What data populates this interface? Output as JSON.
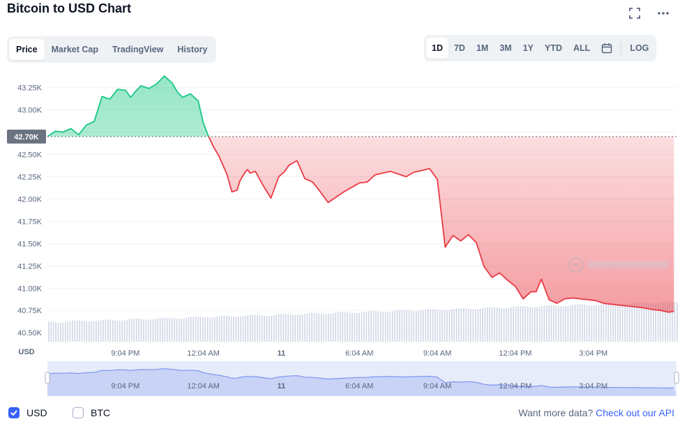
{
  "title": "Bitcoin to USD Chart",
  "header_icons": [
    "fullscreen-icon",
    "more-icon"
  ],
  "view_tabs": [
    {
      "label": "Price",
      "active": true
    },
    {
      "label": "Market Cap",
      "active": false
    },
    {
      "label": "TradingView",
      "active": false
    },
    {
      "label": "History",
      "active": false
    }
  ],
  "range_tabs": [
    {
      "label": "1D",
      "active": true
    },
    {
      "label": "7D",
      "active": false
    },
    {
      "label": "1M",
      "active": false
    },
    {
      "label": "3M",
      "active": false
    },
    {
      "label": "1Y",
      "active": false
    },
    {
      "label": "YTD",
      "active": false
    },
    {
      "label": "ALL",
      "active": false
    }
  ],
  "log_label": "LOG",
  "calendar_icon": "calendar-icon",
  "legend": {
    "usd": "USD",
    "btc": "BTC",
    "usd_checked": true,
    "btc_checked": false
  },
  "more_data": {
    "text": "Want more data?",
    "link": "Check out our API"
  },
  "colors": {
    "up": "#16c784",
    "down": "#ea3943",
    "accent": "#3861fb",
    "volume": "#cfd6e4"
  },
  "chart_data": {
    "type": "line",
    "ylabel": "USD",
    "ylim": [
      40400,
      43450
    ],
    "y_ticks": [
      "43.25K",
      "43.00K",
      "42.75K",
      "42.50K",
      "42.25K",
      "42.00K",
      "41.75K",
      "41.50K",
      "41.25K",
      "41.00K",
      "40.75K",
      "40.50K"
    ],
    "y_tick_values": [
      43250,
      43000,
      42750,
      42500,
      42250,
      42000,
      41750,
      41500,
      41250,
      41000,
      40750,
      40500
    ],
    "reference_value": 42700,
    "reference_label": "42.70K",
    "x_ticks": [
      "9:04 PM",
      "12:04 AM",
      "11",
      "6:04 AM",
      "9:04 AM",
      "12:04 PM",
      "3:04 PM"
    ],
    "x_tick_hours": [
      3,
      6,
      9,
      12,
      15,
      18,
      21
    ],
    "x_range_hours": [
      0,
      24.2
    ],
    "series": [
      {
        "x": [
          0,
          0.3,
          0.6,
          0.9,
          1.2,
          1.5,
          1.8,
          2.1,
          2.4,
          2.7,
          3.0,
          3.2,
          3.4,
          3.6,
          3.9,
          4.2,
          4.5,
          4.8,
          5.0,
          5.2,
          5.5,
          5.8,
          6.0,
          6.2,
          6.4,
          6.6,
          6.9,
          7.1,
          7.3,
          7.4,
          7.6,
          7.7,
          7.8,
          8.0,
          8.3,
          8.6,
          8.9,
          9.1,
          9.3,
          9.6,
          9.9,
          10.2,
          10.5,
          10.8,
          11.1,
          11.4,
          11.7,
          12.0,
          12.3,
          12.6,
          12.9,
          13.2,
          13.5,
          13.8,
          14.1,
          14.4,
          14.7,
          15.0,
          15.3,
          15.6,
          15.9,
          16.2,
          16.5,
          16.8,
          17.1,
          17.4,
          17.7,
          18.0,
          18.3,
          18.6,
          18.8,
          19.0,
          19.3,
          19.6,
          19.9,
          20.2,
          20.5,
          20.8,
          21.1,
          21.4,
          21.7,
          22.0,
          22.3,
          22.6,
          22.9,
          23.1,
          23.3,
          23.6,
          23.9,
          24.1
        ],
        "values": [
          42700,
          42760,
          42750,
          42790,
          42720,
          42830,
          42870,
          43150,
          43120,
          43230,
          43220,
          43140,
          43210,
          43270,
          43240,
          43290,
          43380,
          43300,
          43200,
          43140,
          43180,
          43100,
          42850,
          42700,
          42580,
          42480,
          42280,
          42080,
          42100,
          42200,
          42300,
          42330,
          42290,
          42310,
          42150,
          42010,
          42250,
          42300,
          42380,
          42430,
          42230,
          42190,
          42080,
          41960,
          42020,
          42080,
          42130,
          42180,
          42190,
          42270,
          42290,
          42310,
          42280,
          42250,
          42300,
          42320,
          42340,
          42220,
          41460,
          41590,
          41530,
          41600,
          41510,
          41240,
          41120,
          41170,
          41090,
          41020,
          40880,
          40960,
          40960,
          41100,
          40870,
          40830,
          40880,
          40890,
          40880,
          40870,
          40860,
          40830,
          40820,
          40810,
          40800,
          40790,
          40780,
          40770,
          40760,
          40750,
          40730,
          40740
        ]
      }
    ],
    "volume_ylim": [
      40500,
      40550
    ]
  }
}
